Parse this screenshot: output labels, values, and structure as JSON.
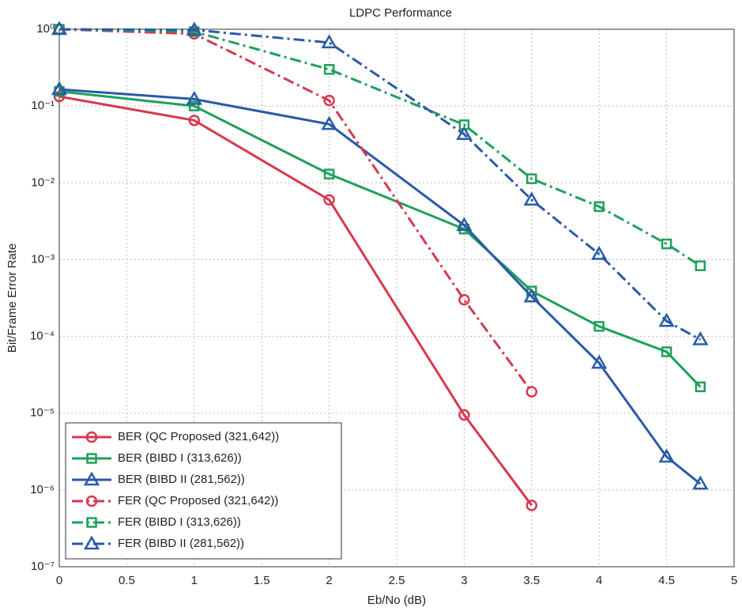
{
  "chart_data": {
    "type": "line",
    "title": "LDPC Performance",
    "xlabel": "Eb/No (dB)",
    "ylabel": "Bit/Frame Error Rate",
    "xlim": [
      0,
      5
    ],
    "xticks": [
      0,
      0.5,
      1,
      1.5,
      2,
      2.5,
      3,
      3.5,
      4,
      4.5,
      5
    ],
    "ylim": [
      1e-07,
      1
    ],
    "yscale": "log",
    "yticks": [
      {
        "value": 1e-07,
        "label": "10⁻⁷"
      },
      {
        "value": 1e-06,
        "label": "10⁻⁶"
      },
      {
        "value": 1e-05,
        "label": "10⁻⁵"
      },
      {
        "value": 0.0001,
        "label": "10⁻⁴"
      },
      {
        "value": 0.001,
        "label": "10⁻³"
      },
      {
        "value": 0.01,
        "label": "10⁻²"
      },
      {
        "value": 0.1,
        "label": "10⁻¹"
      },
      {
        "value": 1,
        "label": "10⁰"
      }
    ],
    "grid": true,
    "legend": "lower left",
    "series": [
      {
        "name": "BER (QC Proposed (321,642))",
        "color": "#d6394f",
        "marker": "circle",
        "linestyle": "solid",
        "x": [
          0,
          1,
          2,
          3,
          3.5
        ],
        "values": [
          0.133,
          0.065,
          0.006,
          9.5e-06,
          6.3e-07
        ]
      },
      {
        "name": "BER (BIBD I (313,626))",
        "color": "#1fa05a",
        "marker": "square",
        "linestyle": "solid",
        "x": [
          0,
          1,
          2,
          3,
          3.5,
          4,
          4.5,
          4.75
        ],
        "values": [
          0.155,
          0.1,
          0.013,
          0.0025,
          0.00039,
          0.000135,
          6.3e-05,
          2.2e-05
        ]
      },
      {
        "name": "BER (BIBD II (281,562))",
        "color": "#2a5aa8",
        "marker": "triangle",
        "linestyle": "solid",
        "x": [
          0,
          1,
          2,
          3,
          3.5,
          4,
          4.5,
          4.75
        ],
        "values": [
          0.165,
          0.123,
          0.058,
          0.0028,
          0.00033,
          4.5e-05,
          2.7e-06,
          1.2e-06
        ]
      },
      {
        "name": "FER (QC Proposed (321,642))",
        "color": "#d6394f",
        "marker": "circle",
        "linestyle": "dashdot",
        "x": [
          0,
          1,
          2,
          3,
          3.5
        ],
        "values": [
          1,
          0.87,
          0.118,
          0.0003,
          1.9e-05
        ]
      },
      {
        "name": "FER (BIBD I (313,626))",
        "color": "#1fa05a",
        "marker": "square",
        "linestyle": "dashdot",
        "x": [
          0,
          1,
          2,
          3,
          3.5,
          4,
          4.5,
          4.75
        ],
        "values": [
          1,
          0.93,
          0.3,
          0.057,
          0.0113,
          0.0049,
          0.0016,
          0.00083
        ]
      },
      {
        "name": "FER (BIBD II (281,562))",
        "color": "#2a5aa8",
        "marker": "triangle",
        "linestyle": "dashdot",
        "x": [
          0,
          1,
          2,
          3,
          3.5,
          4,
          4.5,
          4.75
        ],
        "values": [
          1,
          0.98,
          0.67,
          0.043,
          0.006,
          0.00118,
          0.000158,
          9.1e-05
        ]
      }
    ]
  }
}
